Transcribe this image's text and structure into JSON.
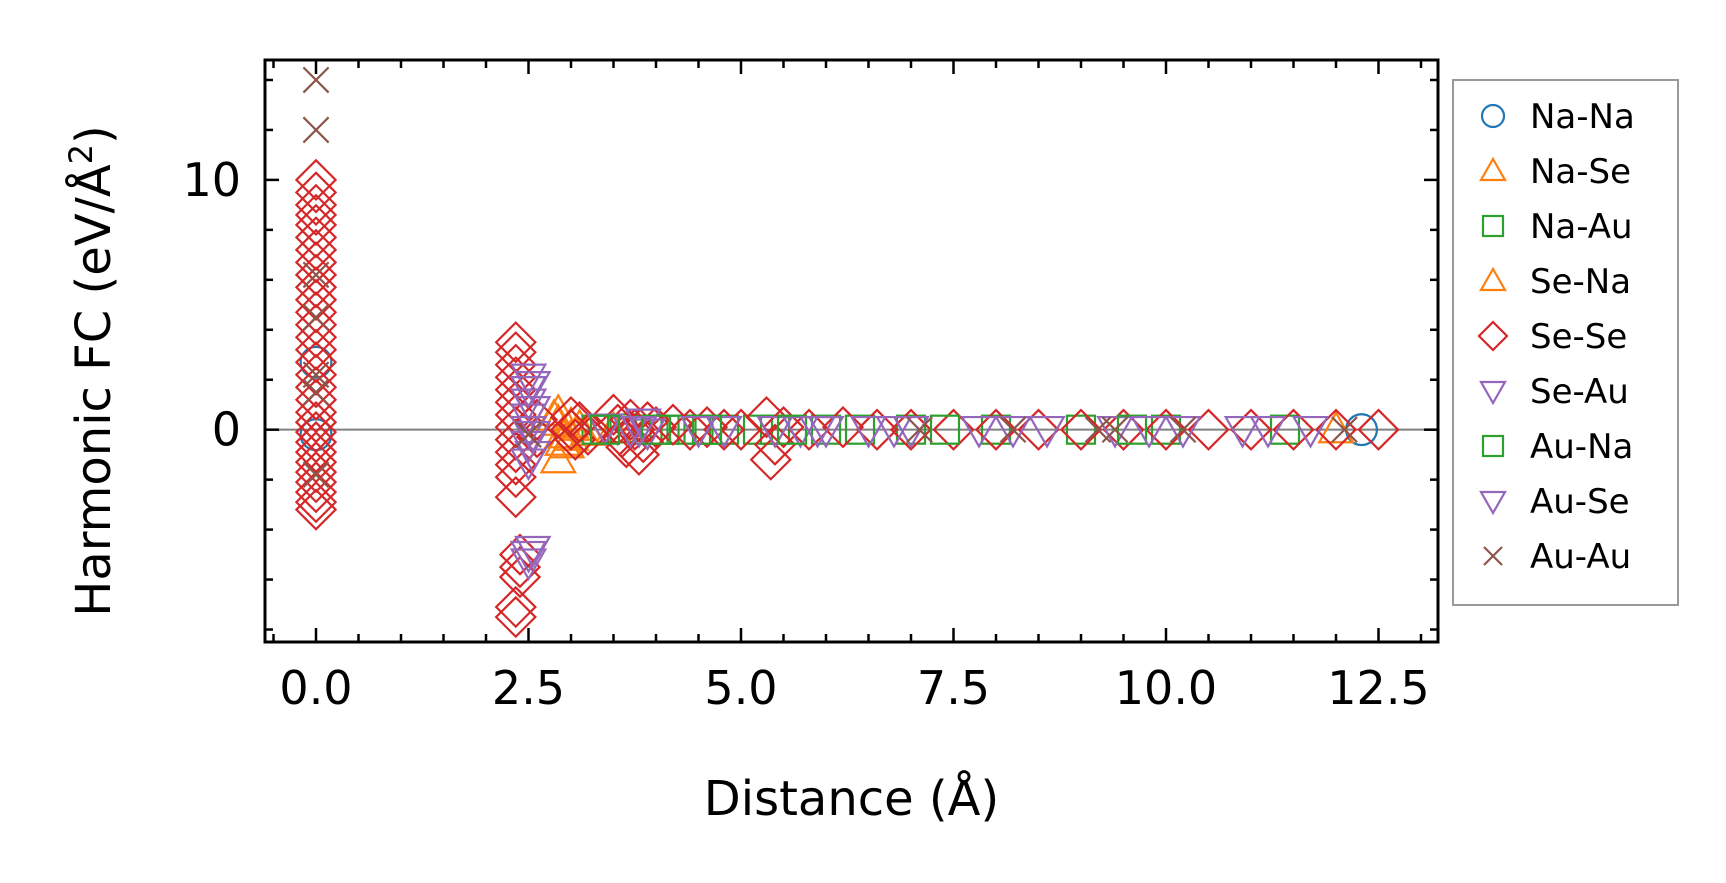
{
  "chart_data": {
    "type": "scatter",
    "title": "",
    "xlabel": "Distance (Å)",
    "ylabel_text": "Harmonic FC (eV/Å",
    "ylabel_sup": "2",
    "ylabel_close": ")",
    "xlim": [
      -0.6,
      13.2
    ],
    "ylim": [
      -8.5,
      14.8
    ],
    "x_ticks": [
      0.0,
      2.5,
      5.0,
      7.5,
      10.0,
      12.5
    ],
    "x_tick_labels": [
      "0.0",
      "2.5",
      "5.0",
      "7.5",
      "10.0",
      "12.5"
    ],
    "y_ticks": [
      0,
      10
    ],
    "y_tick_labels": [
      "0",
      "10"
    ],
    "x_minor_step": 0.5,
    "y_minor_step": 2,
    "zero_line": true,
    "legend_position": "outside-right",
    "series": [
      {
        "name": "Na-Na",
        "marker": "circle",
        "color": "#1f77b4",
        "points": [
          [
            0.0,
            2.7
          ],
          [
            0.0,
            -0.2
          ],
          [
            12.3,
            0.0
          ]
        ]
      },
      {
        "name": "Na-Se",
        "marker": "triangle-up",
        "color": "#ff7f0e",
        "points": [
          [
            2.85,
            0.7
          ],
          [
            2.85,
            0.3
          ],
          [
            2.9,
            -0.2
          ],
          [
            2.95,
            -0.6
          ],
          [
            2.85,
            -1.2
          ],
          [
            3.0,
            -0.3
          ],
          [
            3.1,
            0.1
          ],
          [
            3.2,
            -0.1
          ],
          [
            3.5,
            0.0
          ],
          [
            12.0,
            0.0
          ]
        ]
      },
      {
        "name": "Na-Au",
        "marker": "square",
        "color": "#2ca02c",
        "points": [
          [
            3.3,
            0.0
          ],
          [
            3.6,
            0.05
          ],
          [
            3.9,
            0.0
          ],
          [
            4.1,
            0.0
          ],
          [
            4.3,
            0.0
          ],
          [
            4.5,
            0.0
          ],
          [
            4.8,
            0.0
          ],
          [
            5.2,
            0.0
          ],
          [
            5.4,
            0.0
          ],
          [
            6.0,
            0.0
          ],
          [
            6.4,
            0.0
          ],
          [
            7.0,
            0.0
          ],
          [
            8.0,
            0.0
          ],
          [
            9.0,
            0.0
          ],
          [
            10.0,
            0.0
          ],
          [
            11.4,
            0.0
          ]
        ]
      },
      {
        "name": "Se-Na",
        "marker": "triangle-up",
        "color": "#ff7f0e",
        "points": [
          [
            2.8,
            0.5
          ],
          [
            2.9,
            -0.5
          ],
          [
            3.0,
            0.2
          ]
        ]
      },
      {
        "name": "Se-Se",
        "marker": "diamond",
        "color": "#d62728",
        "points": [
          [
            0.0,
            10.0
          ],
          [
            0.0,
            9.5
          ],
          [
            0.0,
            9.0
          ],
          [
            0.0,
            8.6
          ],
          [
            0.0,
            8.2
          ],
          [
            0.0,
            7.7
          ],
          [
            0.0,
            7.2
          ],
          [
            0.0,
            6.7
          ],
          [
            0.0,
            6.2
          ],
          [
            0.0,
            5.7
          ],
          [
            0.0,
            5.2
          ],
          [
            0.0,
            4.7
          ],
          [
            0.0,
            4.2
          ],
          [
            0.0,
            3.7
          ],
          [
            0.0,
            3.2
          ],
          [
            0.0,
            2.7
          ],
          [
            0.0,
            2.2
          ],
          [
            0.0,
            1.7
          ],
          [
            0.0,
            1.2
          ],
          [
            0.0,
            0.7
          ],
          [
            0.0,
            0.3
          ],
          [
            0.0,
            -0.1
          ],
          [
            0.0,
            -0.5
          ],
          [
            0.0,
            -0.9
          ],
          [
            0.0,
            -1.3
          ],
          [
            0.0,
            -1.7
          ],
          [
            0.0,
            -2.1
          ],
          [
            0.0,
            -2.5
          ],
          [
            0.0,
            -2.9
          ],
          [
            0.0,
            -3.2
          ],
          [
            2.35,
            3.5
          ],
          [
            2.35,
            3.1
          ],
          [
            2.35,
            2.6
          ],
          [
            2.35,
            2.1
          ],
          [
            2.35,
            1.6
          ],
          [
            2.35,
            1.1
          ],
          [
            2.35,
            0.6
          ],
          [
            2.35,
            0.1
          ],
          [
            2.35,
            -0.4
          ],
          [
            2.35,
            -0.9
          ],
          [
            2.35,
            -1.4
          ],
          [
            2.35,
            -1.9
          ],
          [
            2.35,
            -2.7
          ],
          [
            2.4,
            -5.0
          ],
          [
            2.4,
            -5.5
          ],
          [
            2.4,
            -5.9
          ],
          [
            2.35,
            -7.1
          ],
          [
            2.35,
            -7.5
          ],
          [
            2.6,
            0.4
          ],
          [
            2.6,
            -0.3
          ],
          [
            3.0,
            0.5
          ],
          [
            3.0,
            0.0
          ],
          [
            3.05,
            -0.4
          ],
          [
            3.1,
            0.3
          ],
          [
            3.2,
            -0.2
          ],
          [
            3.5,
            0.6
          ],
          [
            3.55,
            0.2
          ],
          [
            3.6,
            -0.3
          ],
          [
            3.65,
            -0.7
          ],
          [
            3.7,
            0.4
          ],
          [
            3.75,
            0.0
          ],
          [
            3.8,
            -1.0
          ],
          [
            3.85,
            -0.5
          ],
          [
            3.9,
            0.3
          ],
          [
            4.0,
            0.1
          ],
          [
            4.2,
            0.2
          ],
          [
            4.4,
            0.0
          ],
          [
            4.6,
            0.1
          ],
          [
            4.8,
            0.0
          ],
          [
            5.0,
            0.0
          ],
          [
            5.3,
            0.5
          ],
          [
            5.35,
            -1.2
          ],
          [
            5.4,
            -0.6
          ],
          [
            5.5,
            0.1
          ],
          [
            5.8,
            0.0
          ],
          [
            6.2,
            0.1
          ],
          [
            6.6,
            0.0
          ],
          [
            7.0,
            0.0
          ],
          [
            7.5,
            0.0
          ],
          [
            8.0,
            0.0
          ],
          [
            8.5,
            0.0
          ],
          [
            9.0,
            0.0
          ],
          [
            9.5,
            0.0
          ],
          [
            10.0,
            0.0
          ],
          [
            10.5,
            0.0
          ],
          [
            11.0,
            0.0
          ],
          [
            11.5,
            0.0
          ],
          [
            12.0,
            0.0
          ],
          [
            12.5,
            0.0
          ]
        ]
      },
      {
        "name": "Se-Au",
        "marker": "triangle-down",
        "color": "#9467bd",
        "points": [
          [
            2.5,
            2.1
          ],
          [
            2.5,
            1.6
          ],
          [
            2.5,
            1.1
          ],
          [
            2.5,
            0.5
          ],
          [
            2.5,
            0.0
          ],
          [
            2.5,
            -0.6
          ],
          [
            2.5,
            -1.3
          ],
          [
            2.5,
            -5.0
          ],
          [
            2.5,
            -5.3
          ],
          [
            3.4,
            0.1
          ],
          [
            3.7,
            0.0
          ],
          [
            3.85,
            0.3
          ],
          [
            3.9,
            -0.1
          ],
          [
            4.8,
            0.0
          ],
          [
            5.4,
            0.0
          ],
          [
            5.7,
            0.0
          ],
          [
            6.0,
            0.0
          ],
          [
            6.5,
            0.0
          ],
          [
            7.0,
            0.0
          ],
          [
            7.8,
            0.0
          ],
          [
            8.6,
            0.0
          ],
          [
            9.4,
            0.0
          ],
          [
            10.2,
            0.0
          ],
          [
            10.9,
            0.0
          ],
          [
            11.7,
            0.0
          ]
        ]
      },
      {
        "name": "Au-Na",
        "marker": "square",
        "color": "#2ca02c",
        "points": [
          [
            3.4,
            0.0
          ],
          [
            4.0,
            0.0
          ],
          [
            4.6,
            0.0
          ],
          [
            5.6,
            0.0
          ],
          [
            7.4,
            0.0
          ],
          [
            9.6,
            0.0
          ]
        ]
      },
      {
        "name": "Au-Se",
        "marker": "triangle-down",
        "color": "#9467bd",
        "points": [
          [
            2.55,
            1.8
          ],
          [
            2.55,
            0.8
          ],
          [
            2.55,
            -0.2
          ],
          [
            2.55,
            -1.0
          ],
          [
            2.55,
            -4.8
          ],
          [
            3.8,
            0.0
          ],
          [
            4.5,
            0.0
          ],
          [
            5.9,
            0.0
          ],
          [
            6.8,
            0.0
          ],
          [
            8.2,
            0.0
          ],
          [
            9.8,
            0.0
          ],
          [
            11.2,
            0.0
          ]
        ]
      },
      {
        "name": "Au-Au",
        "marker": "x",
        "color": "#8c564b",
        "points": [
          [
            0.0,
            14.0
          ],
          [
            0.0,
            12.0
          ],
          [
            0.0,
            6.2
          ],
          [
            0.0,
            4.5
          ],
          [
            0.0,
            2.2
          ],
          [
            0.0,
            1.5
          ],
          [
            0.0,
            -1.8
          ],
          [
            2.5,
            -0.2
          ],
          [
            7.1,
            0.0
          ],
          [
            8.2,
            0.0
          ],
          [
            9.2,
            0.0
          ],
          [
            9.4,
            0.0
          ],
          [
            10.2,
            0.0
          ],
          [
            12.1,
            0.0
          ]
        ]
      }
    ]
  }
}
